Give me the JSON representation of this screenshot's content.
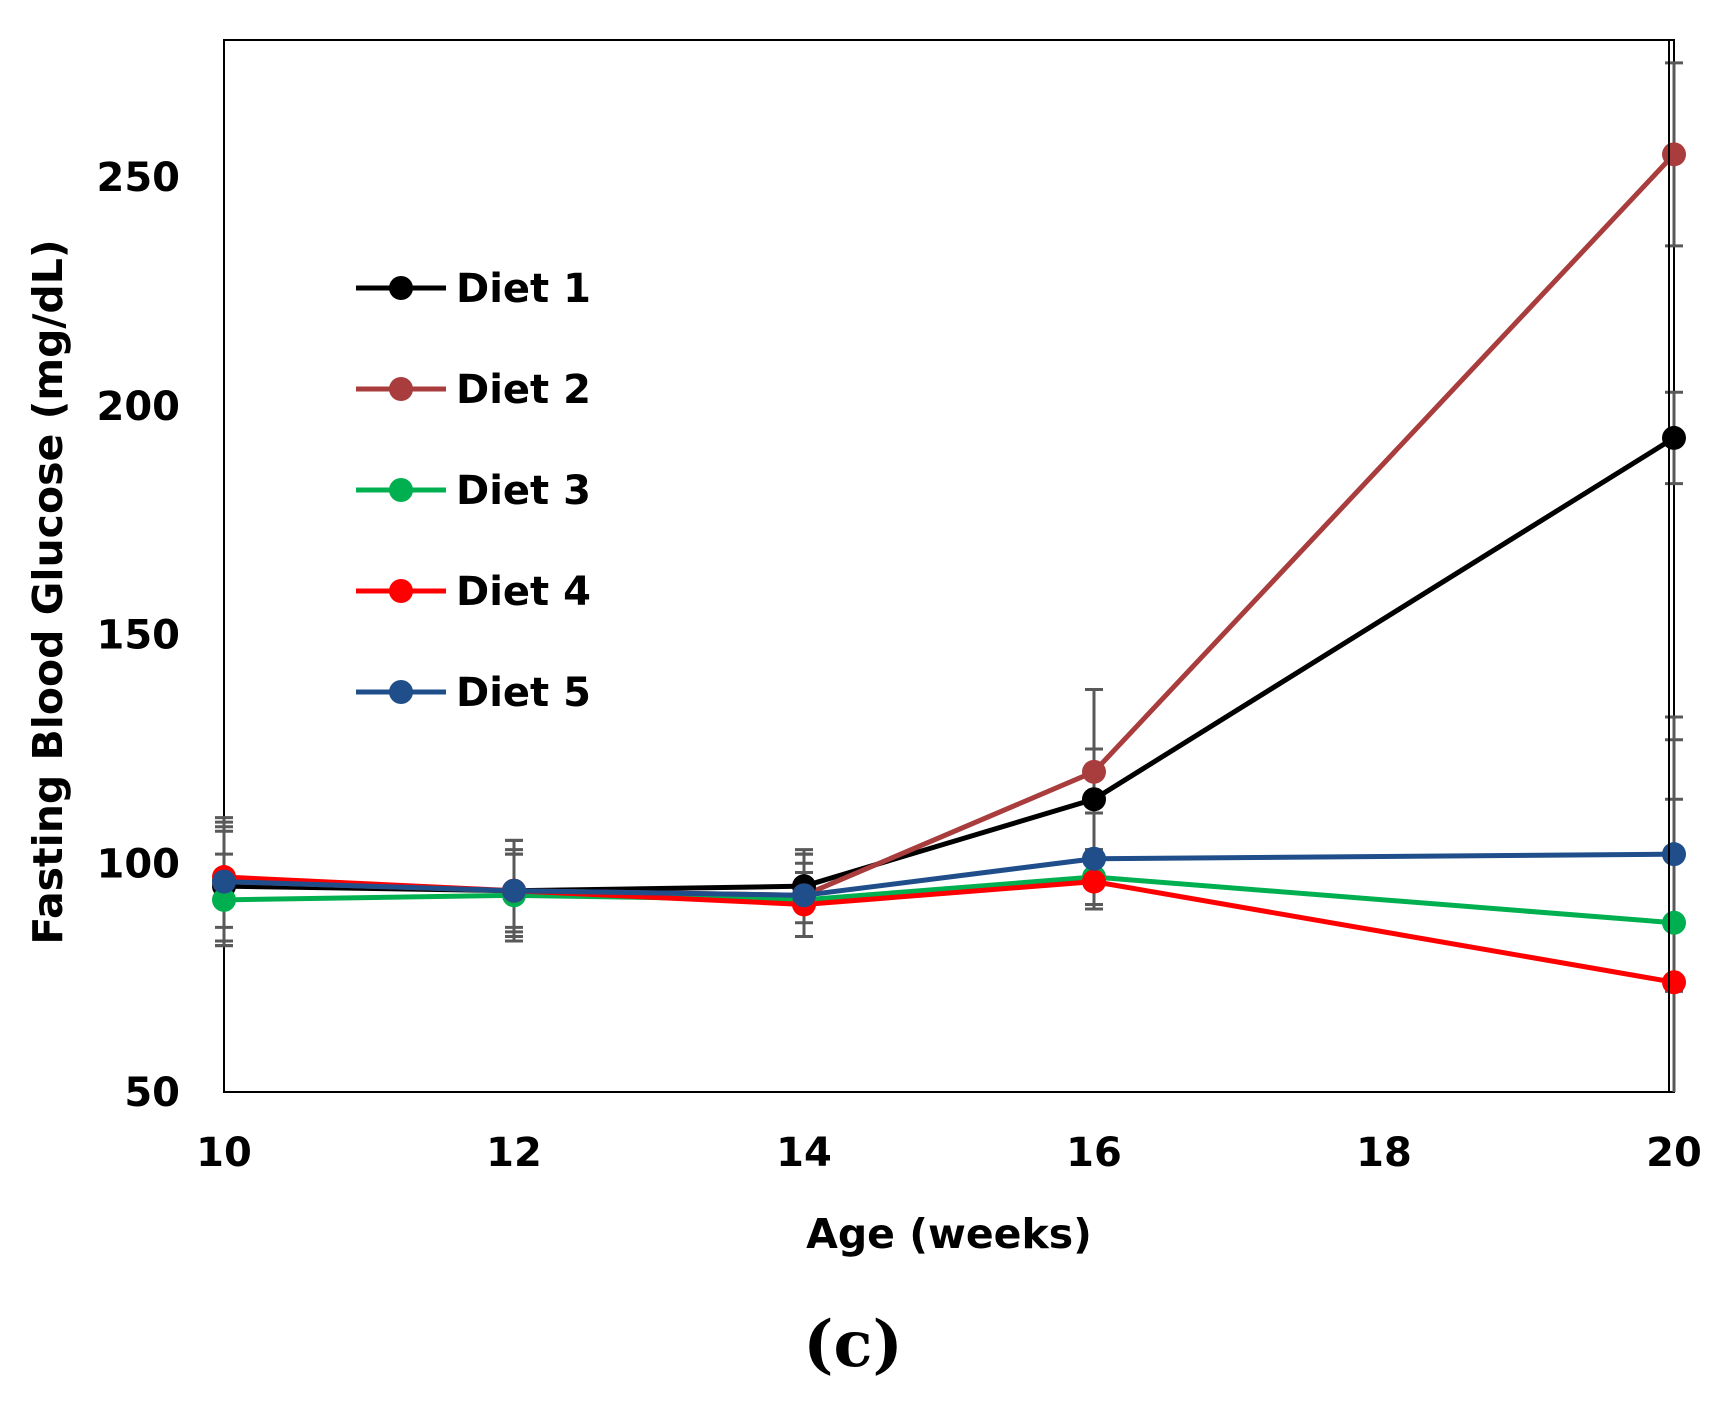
{
  "chart_data": {
    "type": "line",
    "title": "",
    "xlabel": "Age (weeks)",
    "ylabel": "Fasting Blood Glucose (mg/dL)",
    "xlim": [
      10,
      20
    ],
    "ylim": [
      50,
      280
    ],
    "xticks": [
      10,
      12,
      14,
      16,
      18,
      20
    ],
    "yticks": [
      50,
      100,
      150,
      200,
      250
    ],
    "grid": false,
    "legend_position": "upper-left",
    "panel_label": "(c)",
    "x": [
      10,
      12,
      14,
      16,
      20
    ],
    "series": [
      {
        "name": "Diet 1",
        "color": "#000000",
        "values": [
          95,
          94,
          95,
          114,
          193
        ],
        "error": [
          12,
          8,
          8,
          11,
          10
        ]
      },
      {
        "name": "Diet 2",
        "color": "#a93c3c",
        "values": [
          96,
          94,
          93,
          120,
          255
        ],
        "error": [
          14,
          11,
          9,
          18,
          20
        ]
      },
      {
        "name": "Diet 3",
        "color": "#00b050",
        "values": [
          92,
          93,
          92,
          97,
          87
        ],
        "error": [
          10,
          9,
          8,
          6,
          40
        ]
      },
      {
        "name": "Diet 4",
        "color": "#ff0000",
        "values": [
          97,
          94,
          91,
          96,
          74
        ],
        "error": [
          11,
          9,
          7,
          6,
          40
        ]
      },
      {
        "name": "Diet 5",
        "color": "#1f4e8a",
        "values": [
          96,
          94,
          93,
          101,
          102
        ],
        "error": [
          13,
          11,
          9,
          10,
          30
        ]
      }
    ]
  }
}
